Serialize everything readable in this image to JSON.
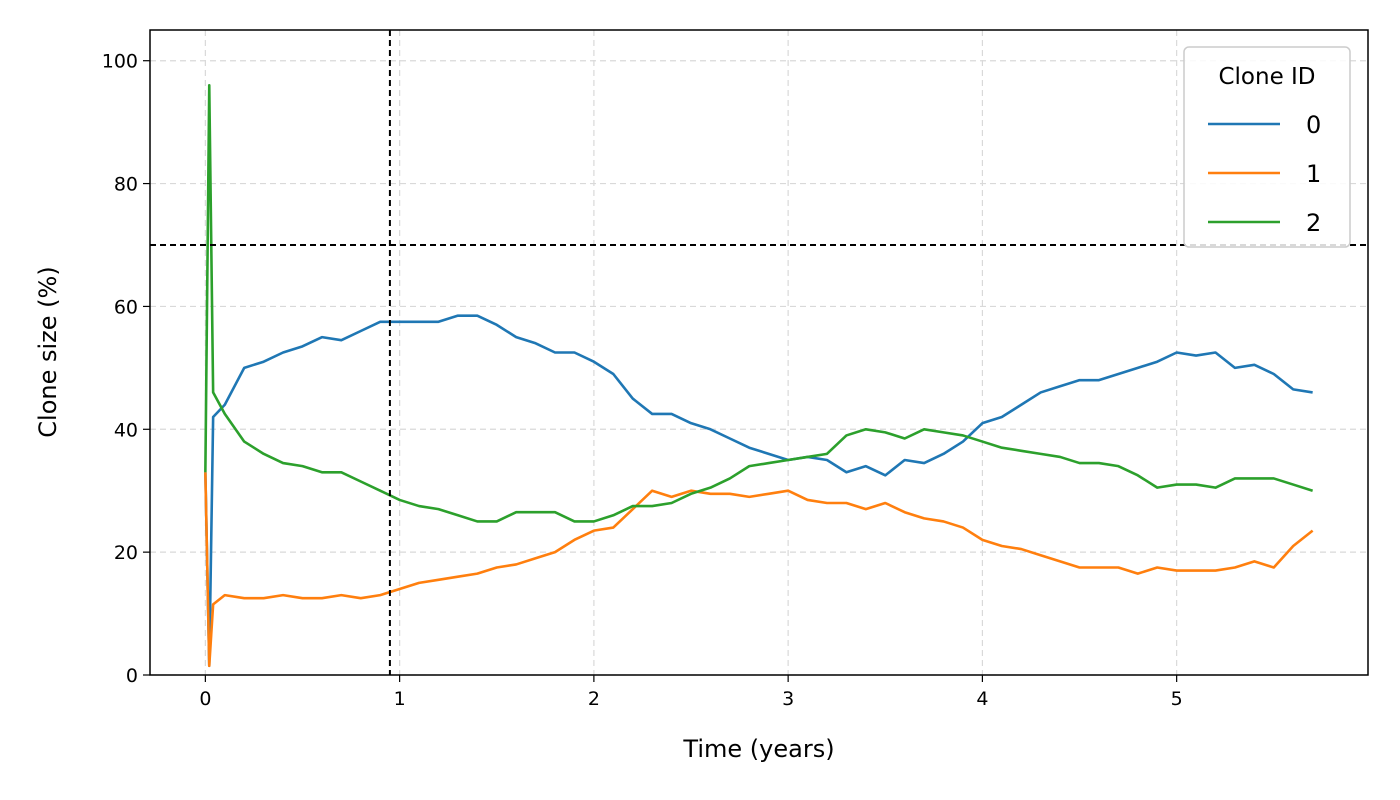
{
  "chart_data": {
    "type": "line",
    "xlabel": "Time (years)",
    "ylabel": "Clone size (%)",
    "x": [
      0,
      0.02,
      0.04,
      0.1,
      0.2,
      0.3,
      0.4,
      0.5,
      0.6,
      0.7,
      0.8,
      0.9,
      1.0,
      1.1,
      1.2,
      1.3,
      1.4,
      1.5,
      1.6,
      1.7,
      1.8,
      1.9,
      2.0,
      2.1,
      2.2,
      2.3,
      2.4,
      2.5,
      2.6,
      2.7,
      2.8,
      2.9,
      3.0,
      3.1,
      3.2,
      3.3,
      3.4,
      3.5,
      3.6,
      3.7,
      3.8,
      3.9,
      4.0,
      4.1,
      4.2,
      4.3,
      4.4,
      4.5,
      4.6,
      4.7,
      4.8,
      4.9,
      5.0,
      5.1,
      5.2,
      5.3,
      5.4,
      5.5,
      5.6,
      5.7
    ],
    "series": [
      {
        "name": "0",
        "color": "#1f77b4",
        "values": [
          33,
          1.5,
          42,
          44,
          50,
          51,
          52.5,
          53.5,
          55,
          54.5,
          56,
          57.5,
          57.5,
          57.5,
          57.5,
          58.5,
          58.5,
          57,
          55,
          54,
          52.5,
          52.5,
          51,
          49,
          45,
          42.5,
          42.5,
          41,
          40,
          38.5,
          37,
          36,
          35,
          35.5,
          35,
          33,
          34,
          32.5,
          35,
          34.5,
          36,
          38,
          41,
          42,
          44,
          46,
          47,
          48,
          48,
          49,
          50,
          51,
          52.5,
          52,
          52.5,
          50,
          50.5,
          49,
          46.5,
          46
        ]
      },
      {
        "name": "1",
        "color": "#ff7f0e",
        "values": [
          33,
          1.5,
          11.5,
          13,
          12.5,
          12.5,
          13,
          12.5,
          12.5,
          13,
          12.5,
          13,
          14,
          15,
          15.5,
          16,
          16.5,
          17.5,
          18,
          19,
          20,
          22,
          23.5,
          24,
          27,
          30,
          29,
          30,
          29.5,
          29.5,
          29,
          29.5,
          30,
          28.5,
          28,
          28,
          27,
          28,
          26.5,
          25.5,
          25,
          24,
          22,
          21,
          20.5,
          19.5,
          18.5,
          17.5,
          17.5,
          17.5,
          16.5,
          17.5,
          17,
          17,
          17,
          17.5,
          18.5,
          17.5,
          21,
          23.5
        ]
      },
      {
        "name": "2",
        "color": "#2ca02c",
        "values": [
          33,
          96,
          46,
          42.5,
          38,
          36,
          34.5,
          34,
          33,
          33,
          31.5,
          30,
          28.5,
          27.5,
          27,
          26,
          25,
          25,
          26.5,
          26.5,
          26.5,
          25,
          25,
          26,
          27.5,
          27.5,
          28,
          29.5,
          30.5,
          32,
          34,
          34.5,
          35,
          35.5,
          36,
          39,
          40,
          39.5,
          38.5,
          40,
          39.5,
          39,
          38,
          37,
          36.5,
          36,
          35.5,
          34.5,
          34.5,
          34,
          32.5,
          30.5,
          31,
          31,
          30.5,
          32,
          32,
          32,
          31,
          30
        ]
      }
    ],
    "xlim": [
      -0.285,
      5.985
    ],
    "xticks": [
      0,
      1,
      2,
      3,
      4,
      5
    ],
    "ylim": [
      0,
      105
    ],
    "yticks": [
      0,
      20,
      40,
      60,
      80,
      100
    ],
    "vlines": [
      0.95
    ],
    "hlines": [
      70
    ],
    "grid": true,
    "legend_title": "Clone ID",
    "legend_loc": "upper right"
  }
}
